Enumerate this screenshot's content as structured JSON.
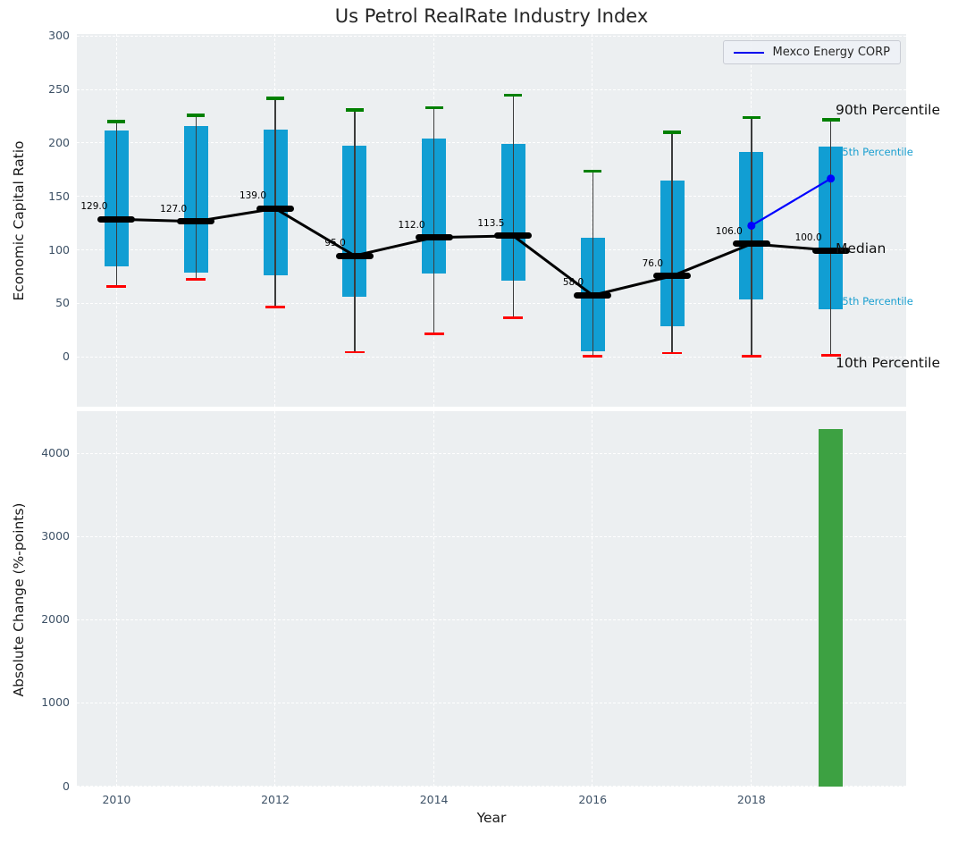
{
  "figure": {
    "title": "Us Petrol RealRate Industry Index",
    "legend": {
      "entries": [
        "Mexco Energy CORP"
      ]
    }
  },
  "colors": {
    "box": "#119ed3",
    "cyan_label": "#1a9fd0",
    "green_cap": "#008000",
    "red_cap": "#ff0000",
    "whisker": "#3c3c3c",
    "median_line": "#000000",
    "company_line": "#0000ff",
    "bar": "#3da142",
    "plot_bg": "#eceff1",
    "grid": "#ffffff",
    "tick_label": "#3d5166",
    "title": "#262626"
  },
  "chart_data": [
    {
      "type": "boxplot",
      "title": "Us Petrol RealRate Industry Index",
      "ylabel": "Economic Capital Ratio",
      "xlabel": "",
      "ylim": [
        -46,
        302
      ],
      "xlim": [
        2009.5,
        2019.95
      ],
      "yticks": [
        0,
        50,
        100,
        150,
        200,
        250,
        300
      ],
      "xticks": [
        2010,
        2012,
        2014,
        2016,
        2018
      ],
      "grid": true,
      "legend_position": "upper right",
      "boxes": [
        {
          "year": 2010,
          "p10": 66,
          "p25": 85,
          "median": 129,
          "p75": 212,
          "p90": 220,
          "label": "129.0"
        },
        {
          "year": 2011,
          "p10": 73,
          "p25": 79,
          "median": 127,
          "p75": 216,
          "p90": 226,
          "label": "127.0"
        },
        {
          "year": 2012,
          "p10": 47,
          "p25": 77,
          "median": 139,
          "p75": 213,
          "p90": 242,
          "label": "139.0"
        },
        {
          "year": 2013,
          "p10": 5,
          "p25": 57,
          "median": 95,
          "p75": 198,
          "p90": 231,
          "label": "95.0"
        },
        {
          "year": 2014,
          "p10": 22,
          "p25": 78,
          "median": 112,
          "p75": 204,
          "p90": 233,
          "label": "112.0"
        },
        {
          "year": 2015,
          "p10": 37,
          "p25": 72,
          "median": 113.5,
          "p75": 199,
          "p90": 245,
          "label": "113.5"
        },
        {
          "year": 2016,
          "p10": 1,
          "p25": 6,
          "median": 58,
          "p75": 112,
          "p90": 174,
          "label": "58.0"
        },
        {
          "year": 2017,
          "p10": 4,
          "p25": 29,
          "median": 76,
          "p75": 165,
          "p90": 210,
          "label": "76.0"
        },
        {
          "year": 2018,
          "p10": 1,
          "p25": 54,
          "median": 106,
          "p75": 192,
          "p90": 224,
          "label": "106.0"
        },
        {
          "year": 2019,
          "p10": 2,
          "p25": 45,
          "median": 100,
          "p75": 197,
          "p90": 222,
          "label": "100.0"
        }
      ],
      "series": [
        {
          "name": "Mexco Energy CORP",
          "x": [
            2018,
            2019
          ],
          "y": [
            123,
            167
          ]
        }
      ],
      "annotations": [
        {
          "text": "90th Percentile",
          "value": 230,
          "style": "black"
        },
        {
          "text": "75th Percentile",
          "value": 191,
          "style": "cyan"
        },
        {
          "text": "Median",
          "value": 101,
          "style": "black"
        },
        {
          "text": "25th Percentile",
          "value": 52,
          "style": "cyan"
        },
        {
          "text": "10th Percentile",
          "value": -6,
          "style": "black"
        }
      ]
    },
    {
      "type": "bar",
      "title": "",
      "ylabel": "Absolute Change (%-points)",
      "xlabel": "Year",
      "ylim": [
        0,
        4515
      ],
      "xlim": [
        2009.5,
        2019.95
      ],
      "yticks": [
        0,
        1000,
        2000,
        3000,
        4000
      ],
      "xticks": [
        2010,
        2012,
        2014,
        2016,
        2018
      ],
      "grid": true,
      "bars": [
        {
          "year": 2019,
          "value": 4300
        }
      ]
    }
  ]
}
